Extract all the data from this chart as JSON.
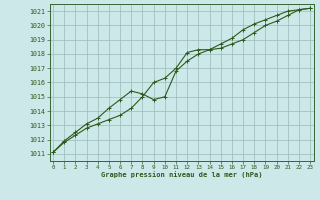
{
  "title": "Graphe pression niveau de la mer (hPa)",
  "bg_color": "#cce8e8",
  "grid_color": "#99bbbb",
  "line_color": "#2d5a1b",
  "spine_color": "#336633",
  "xlim": [
    -0.3,
    23.3
  ],
  "ylim": [
    1010.5,
    1021.5
  ],
  "yticks": [
    1011,
    1012,
    1013,
    1014,
    1015,
    1016,
    1017,
    1018,
    1019,
    1020,
    1021
  ],
  "xticks": [
    0,
    1,
    2,
    3,
    4,
    5,
    6,
    7,
    8,
    9,
    10,
    11,
    12,
    13,
    14,
    15,
    16,
    17,
    18,
    19,
    20,
    21,
    22,
    23
  ],
  "line1_x": [
    0,
    1,
    2,
    3,
    4,
    5,
    6,
    7,
    8,
    9,
    10,
    11,
    12,
    13,
    14,
    15,
    16,
    17,
    18,
    19,
    20,
    21,
    22,
    23
  ],
  "line1_y": [
    1011.1,
    1011.8,
    1012.3,
    1012.8,
    1013.1,
    1013.4,
    1013.7,
    1014.2,
    1015.0,
    1016.0,
    1016.3,
    1017.0,
    1018.1,
    1018.3,
    1018.3,
    1018.4,
    1018.7,
    1019.0,
    1019.5,
    1020.0,
    1020.3,
    1020.7,
    1021.1,
    1021.2
  ],
  "line2_x": [
    0,
    1,
    2,
    3,
    4,
    5,
    6,
    7,
    8,
    9,
    10,
    11,
    12,
    13,
    14,
    15,
    16,
    17,
    18,
    19,
    20,
    21,
    22,
    23
  ],
  "line2_y": [
    1011.1,
    1011.9,
    1012.5,
    1013.1,
    1013.5,
    1014.2,
    1014.8,
    1015.4,
    1015.2,
    1014.8,
    1015.0,
    1016.8,
    1017.5,
    1018.0,
    1018.3,
    1018.7,
    1019.1,
    1019.7,
    1020.1,
    1020.4,
    1020.7,
    1021.0,
    1021.1,
    1021.2
  ]
}
